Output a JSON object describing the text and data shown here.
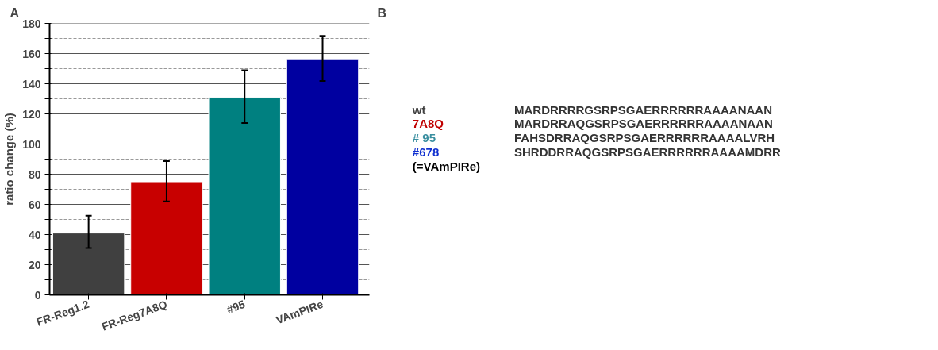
{
  "chart_data": [
    {
      "type": "bar",
      "title": "A",
      "ylabel": "ratio change (%)",
      "categories": [
        "FR-Reg1.2",
        "FR-Reg7A8Q",
        "#95",
        "VAmPIRe"
      ],
      "values": [
        41,
        75,
        131,
        156.5
      ],
      "colors": [
        "#404040",
        "#c80000",
        "#008080",
        "#0000a0"
      ],
      "errors": [
        [
          31,
          52.5
        ],
        [
          62,
          88.7
        ],
        [
          114,
          149
        ],
        [
          141.8,
          171.7
        ]
      ],
      "ylim": [
        0,
        180
      ],
      "yticks": [
        0,
        {
          "value": 10,
          "label": null
        },
        20,
        {
          "value": 30,
          "label": null
        },
        40,
        {
          "value": 50,
          "label": null
        },
        60,
        {
          "value": 70,
          "label": null
        },
        80,
        {
          "value": 90,
          "label": null
        },
        100,
        {
          "value": 110,
          "label": null
        },
        120,
        {
          "value": 130,
          "label": null
        },
        140,
        {
          "value": 150,
          "label": null
        },
        160,
        {
          "value": 170,
          "label": null
        },
        180
      ],
      "grid": "y"
    },
    {
      "type": "other",
      "title": "B",
      "annotations": [
        "wt",
        "MARDRRRRGSRPSGAERRRRRRAAAANAAN",
        "7A8Q",
        "MARDRRAQGSRPSGAERRRRRRAAAANAAN",
        "# 95",
        "FAHSDRRAQGSRPSGAERRRRRRAAAALVRH",
        "#678",
        "SHRDDRRAQGSRPSGAERRRRRRAAAAMDRR",
        "(=VAmPIRe)"
      ],
      "colors": [
        "#404040",
        "#c00000",
        "#3a8fa0",
        "#1030d0",
        "#000000"
      ]
    }
  ]
}
